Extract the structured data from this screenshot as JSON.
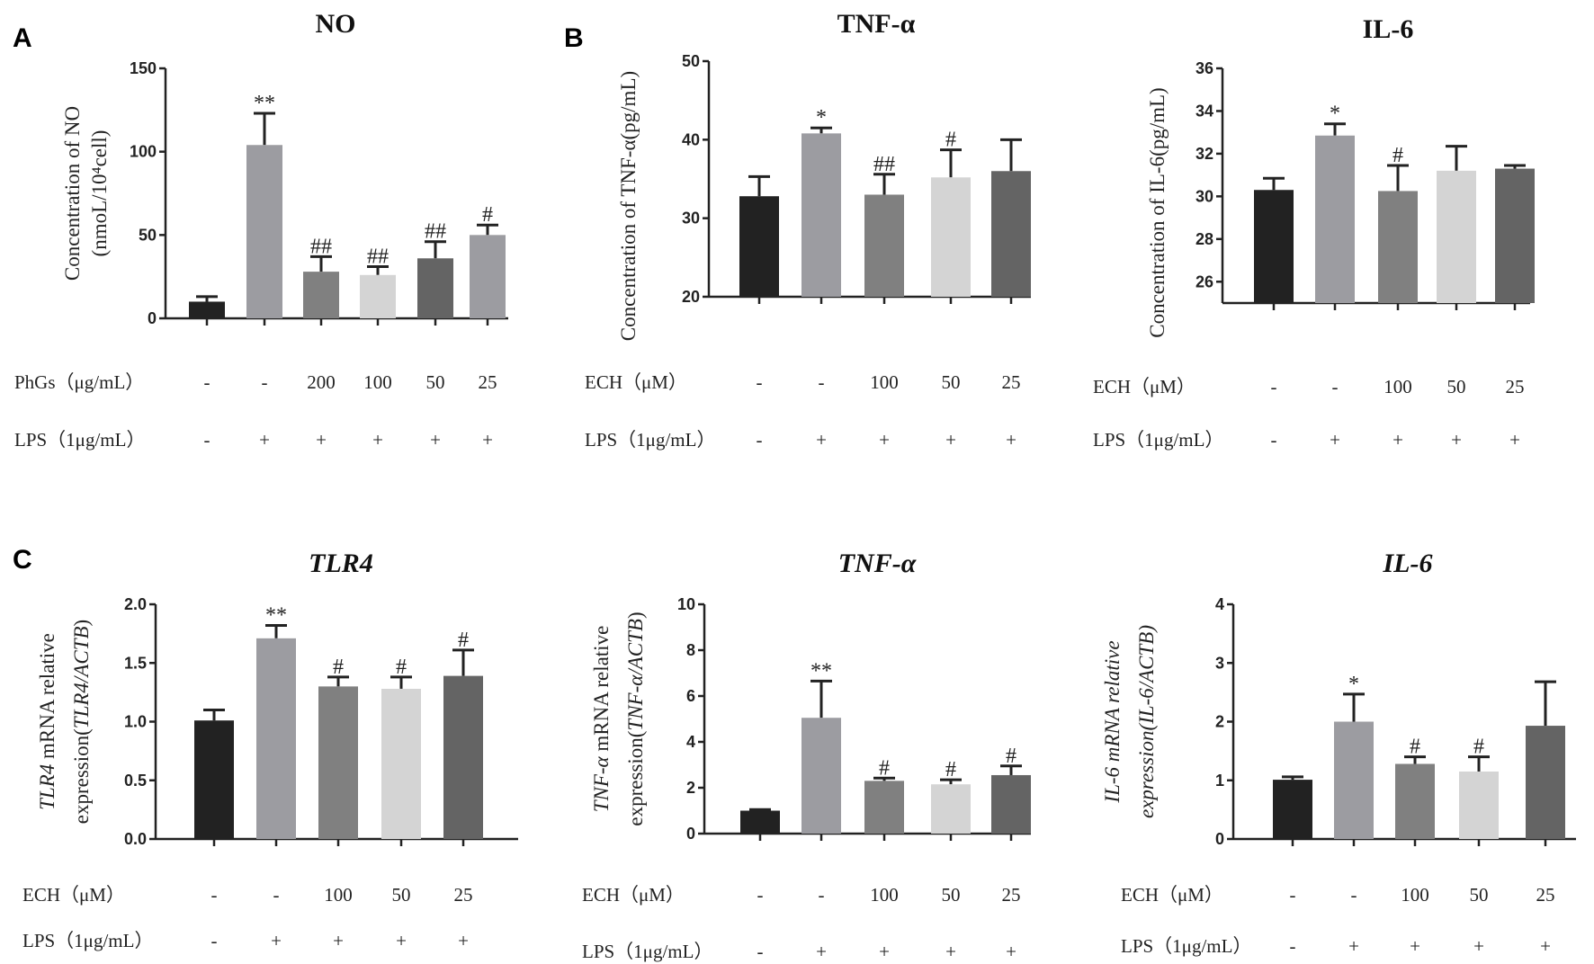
{
  "panel_labels": [
    "A",
    "B",
    "C"
  ],
  "colors": {
    "black": "#222222",
    "lightgray": "#9c9ca1",
    "gray": "#808080",
    "pale": "#d4d4d4",
    "dark": "#646464",
    "axis": "#222222"
  },
  "chart_data": [
    {
      "type": "bar",
      "panel": "A",
      "title": "NO",
      "title_italic": false,
      "ylabel_lines": [
        [
          {
            "t": "Concentration of NO"
          }
        ],
        [
          {
            "t": "(nmoL/10⁴cell)"
          }
        ]
      ],
      "ylim": [
        0,
        150
      ],
      "yticks": [
        "0",
        "50",
        "100",
        "150"
      ],
      "ytick_values": [
        0,
        50,
        100,
        150
      ],
      "values": [
        10,
        104,
        28,
        26,
        36,
        50
      ],
      "errors": [
        3,
        19,
        9,
        5,
        10,
        6
      ],
      "annotations": [
        "",
        "**",
        "##",
        "##",
        "##",
        "#"
      ],
      "bar_colors": [
        "#222222",
        "#9c9ca1",
        "#808080",
        "#d4d4d4",
        "#646464",
        "#9c9ca1"
      ],
      "rows": [
        {
          "label": "PhGs（μg/mL）",
          "values": [
            "-",
            "-",
            "200",
            "100",
            "50",
            "25"
          ]
        },
        {
          "label": "LPS（1μg/mL）",
          "values": [
            "-",
            "+",
            "+",
            "+",
            "+",
            "+"
          ]
        }
      ]
    },
    {
      "type": "bar",
      "panel": "B",
      "title": "TNF-α",
      "title_italic": false,
      "ylabel_lines": [
        [
          {
            "t": "Concentration of TNF-α(pg/mL)"
          }
        ]
      ],
      "ylim": [
        20,
        50
      ],
      "yticks": [
        "20",
        "30",
        "40",
        "50"
      ],
      "ytick_values": [
        20,
        30,
        40,
        50
      ],
      "values": [
        32.8,
        40.8,
        33.0,
        35.2,
        36.0
      ],
      "errors": [
        2.5,
        0.7,
        2.6,
        3.5,
        4.0
      ],
      "annotations": [
        "",
        "*",
        "##",
        "#",
        ""
      ],
      "bar_colors": [
        "#222222",
        "#9c9ca1",
        "#808080",
        "#d4d4d4",
        "#646464"
      ],
      "rows": [
        {
          "label": "ECH（μM）",
          "values": [
            "-",
            "-",
            "100",
            "50",
            "25"
          ]
        },
        {
          "label": "LPS（1μg/mL）",
          "values": [
            "-",
            "+",
            "+",
            "+",
            "+"
          ]
        }
      ]
    },
    {
      "type": "bar",
      "panel": "B",
      "title": "IL-6",
      "title_italic": false,
      "ylabel_lines": [
        [
          {
            "t": "Concentration of IL-6(pg/mL)"
          }
        ]
      ],
      "ylim": [
        25,
        36
      ],
      "yticks": [
        "26",
        "28",
        "30",
        "32",
        "34",
        "36"
      ],
      "ytick_values": [
        26,
        28,
        30,
        32,
        34,
        36
      ],
      "values": [
        30.3,
        32.85,
        30.25,
        31.2,
        31.3
      ],
      "errors": [
        0.55,
        0.55,
        1.2,
        1.15,
        0.15
      ],
      "annotations": [
        "",
        "*",
        "#",
        "",
        ""
      ],
      "bar_colors": [
        "#222222",
        "#9c9ca1",
        "#808080",
        "#d4d4d4",
        "#646464"
      ],
      "rows": [
        {
          "label": "ECH（μM）",
          "values": [
            "-",
            "-",
            "100",
            "50",
            "25"
          ]
        },
        {
          "label": "LPS（1μg/mL）",
          "values": [
            "-",
            "+",
            "+",
            "+",
            "+"
          ]
        }
      ]
    },
    {
      "type": "bar",
      "panel": "C",
      "title": "TLR4",
      "title_italic": true,
      "ylabel_lines": [
        [
          {
            "t": "TLR4",
            "i": true
          },
          {
            "t": " mRNA relative"
          }
        ],
        [
          {
            "t": "expression("
          },
          {
            "t": "TLR4/ACTB",
            "i": true
          },
          {
            "t": ")"
          }
        ]
      ],
      "ylim": [
        0,
        2
      ],
      "yticks": [
        "0.0",
        "0.5",
        "1.0",
        "1.5",
        "2.0"
      ],
      "ytick_values": [
        0,
        0.5,
        1,
        1.5,
        2
      ],
      "values": [
        1.01,
        1.71,
        1.3,
        1.28,
        1.39
      ],
      "errors": [
        0.09,
        0.11,
        0.08,
        0.1,
        0.22
      ],
      "annotations": [
        "",
        "**",
        "#",
        "#",
        "#"
      ],
      "bar_colors": [
        "#222222",
        "#9c9ca1",
        "#808080",
        "#d4d4d4",
        "#646464"
      ],
      "rows": [
        {
          "label": "ECH（μM）",
          "values": [
            "-",
            "-",
            "100",
            "50",
            "25"
          ]
        },
        {
          "label": "LPS（1μg/mL）",
          "values": [
            "-",
            "+",
            "+",
            "+",
            "+"
          ]
        }
      ]
    },
    {
      "type": "bar",
      "panel": "C",
      "title": "TNF-α",
      "title_italic": true,
      "ylabel_lines": [
        [
          {
            "t": "TNF-α",
            "i": true
          },
          {
            "t": " mRNA relative"
          }
        ],
        [
          {
            "t": "expression("
          },
          {
            "t": "TNF-α/ACTB",
            "i": true
          },
          {
            "t": ")"
          }
        ]
      ],
      "ylim": [
        0,
        10
      ],
      "yticks": [
        "0",
        "2",
        "4",
        "6",
        "8",
        "10"
      ],
      "ytick_values": [
        0,
        2,
        4,
        6,
        8,
        10
      ],
      "values": [
        1.0,
        5.05,
        2.3,
        2.15,
        2.55
      ],
      "errors": [
        0.05,
        1.6,
        0.12,
        0.2,
        0.4
      ],
      "annotations": [
        "",
        "**",
        "#",
        "#",
        "#"
      ],
      "bar_colors": [
        "#222222",
        "#9c9ca1",
        "#808080",
        "#d4d4d4",
        "#646464"
      ],
      "rows": [
        {
          "label": "ECH（μM）",
          "values": [
            "-",
            "-",
            "100",
            "50",
            "25"
          ]
        },
        {
          "label": "LPS（1μg/mL）",
          "values": [
            "-",
            "+",
            "+",
            "+",
            "+"
          ]
        }
      ]
    },
    {
      "type": "bar",
      "panel": "C",
      "title": "IL-6",
      "title_italic": true,
      "ylabel_lines": [
        [
          {
            "t": "IL-6 mRNA relative",
            "i": true
          }
        ],
        [
          {
            "t": "expression(IL-6/ACTB)",
            "i": true
          }
        ]
      ],
      "ylim": [
        0,
        4
      ],
      "yticks": [
        "0",
        "1",
        "2",
        "3",
        "4"
      ],
      "ytick_values": [
        0,
        1,
        2,
        3,
        4
      ],
      "values": [
        1.01,
        2.0,
        1.28,
        1.15,
        1.93
      ],
      "errors": [
        0.05,
        0.47,
        0.12,
        0.25,
        0.75
      ],
      "annotations": [
        "",
        "*",
        "#",
        "#",
        ""
      ],
      "bar_colors": [
        "#222222",
        "#9c9ca1",
        "#808080",
        "#d4d4d4",
        "#646464"
      ],
      "rows": [
        {
          "label": "ECH（μM）",
          "values": [
            "-",
            "-",
            "100",
            "50",
            "25"
          ]
        },
        {
          "label": "LPS（1μg/mL）",
          "values": [
            "-",
            "+",
            "+",
            "+",
            "+"
          ]
        }
      ]
    }
  ]
}
